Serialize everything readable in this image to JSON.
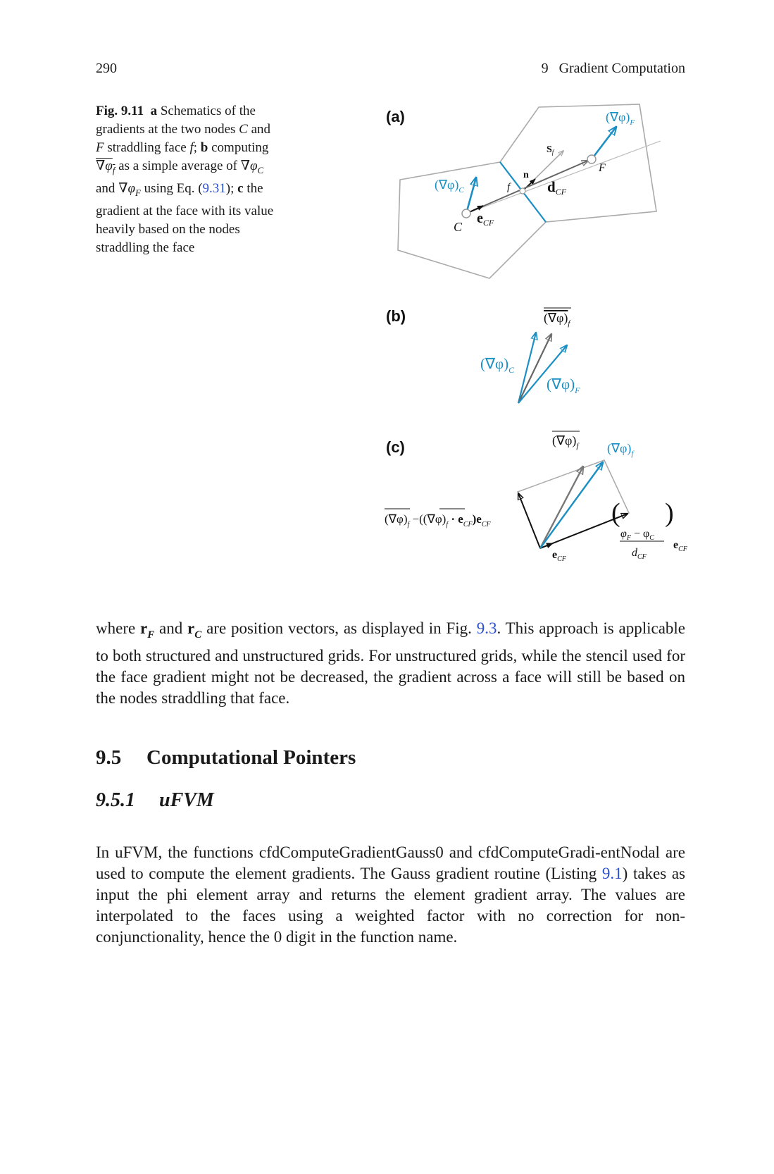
{
  "header": {
    "page_number": "290",
    "running_head": "9   Gradient Computation"
  },
  "figure": {
    "caption": {
      "label": "Fig. 9.11",
      "a": "a",
      "a_text": " Schematics of the gradients at the two nodes ",
      "C": "C",
      "and1": " and ",
      "F": "F",
      "straddling": " straddling face ",
      "f": "f",
      "semi": ";",
      "b": "b",
      "b_text": " computing ",
      "b_math": "∇φ",
      "b_sub": "f",
      "b_text2": " as a simple average of ",
      "grad_c": "∇φ",
      "grad_c_sub": "C",
      "and2": " and ",
      "grad_f": "∇φ",
      "grad_f_sub": "F",
      "using": " using Eq. (",
      "eq_ref": "9.31",
      "using_end": "); ",
      "c": "c",
      "c_text": " the gradient at the face with its value heavily based on the nodes straddling the face"
    },
    "panel_a": {
      "label": "(a)",
      "grad_C": "(∇φ)",
      "grad_C_sub": "C",
      "grad_F": "(∇φ)",
      "grad_F_sub": "F",
      "node_C": "C",
      "node_F": "F",
      "face_f": "f",
      "e_CF": "e",
      "e_CF_sub": "CF",
      "d_CF": "d",
      "d_CF_sub": "CF",
      "n": "n",
      "S_f": "S",
      "S_f_sub": "f"
    },
    "panel_b": {
      "label": "(b)",
      "grad_avg": "(∇φ)",
      "grad_avg_sub": "f",
      "grad_C": "(∇φ)",
      "grad_C_sub": "C",
      "grad_F": "(∇φ)",
      "grad_F_sub": "F"
    },
    "panel_c": {
      "label": "(c)",
      "grad_avg": "(∇φ)",
      "grad_avg_sub": "f",
      "grad_f": "(∇φ)",
      "grad_f_sub": "f",
      "correction_prefix": "(∇φ)",
      "correction_sub": "f",
      "correction_minus": " −((∇φ)",
      "correction_sub2": "f",
      "correction_dot": " · e",
      "correction_dot_sub": "CF",
      "correction_close": ")e",
      "correction_close_sub": "CF",
      "e_CF": "e",
      "e_CF_sub": "CF",
      "frac_num": "φ",
      "frac_num_sub1": "F",
      "frac_minus": " − φ",
      "frac_num_sub2": "C",
      "frac_den": "d",
      "frac_den_sub": "CF",
      "frac_e": "e",
      "frac_e_sub": "CF"
    }
  },
  "body": {
    "para1": {
      "t1": "where ",
      "rF": "r",
      "rF_sub": "F",
      "t2": " and ",
      "rC": "r",
      "rC_sub": "C",
      "t3": " are position vectors, as displayed in Fig. ",
      "fig_ref": "9.3",
      "t4": ". This approach is applicable to both structured and unstructured grids. For unstructured grids, while the stencil used for the face gradient might not be decreased, the gradient across a face will still be based on the nodes straddling that face."
    },
    "section": {
      "number": "9.5",
      "title": "Computational Pointers"
    },
    "subsection": {
      "number": "9.5.1",
      "title": "uFVM"
    },
    "para2": {
      "t1": "In uFVM, the functions cfdComputeGradientGauss0 and cfdComputeGradi-entNodal are used to compute the element gradients. The Gauss gradient routine (Listing ",
      "listing_ref": "9.1",
      "t2": ") takes as input the phi element array and returns the element gradient array. The values are interpolated to the faces using a weighted factor with no correction for non-conjunctionality, hence the 0 digit in the function name."
    }
  }
}
